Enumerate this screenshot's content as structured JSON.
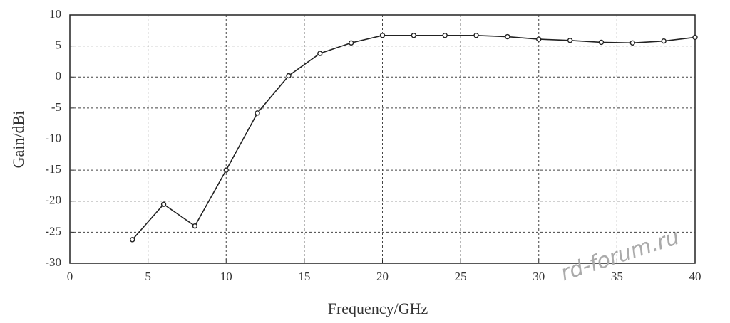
{
  "chart_data": {
    "type": "line",
    "xlabel": "Frequency/GHz",
    "ylabel": "Gain/dBi",
    "x": [
      4,
      6,
      8,
      10,
      12,
      14,
      16,
      18,
      20,
      22,
      24,
      26,
      28,
      30,
      32,
      34,
      36,
      38,
      40
    ],
    "series": [
      {
        "color": "#222222",
        "values": [
          -26.2,
          -20.5,
          -24,
          -15,
          -5.8,
          0.2,
          3.8,
          5.5,
          6.7,
          6.7,
          6.7,
          6.7,
          6.5,
          6.1,
          5.9,
          5.6,
          5.5,
          5.8,
          6.4
        ]
      }
    ],
    "xlim": [
      0,
      40
    ],
    "xticks": [
      0,
      5,
      10,
      15,
      20,
      25,
      30,
      35,
      40
    ],
    "ylim": [
      -30,
      10
    ],
    "yticks": [
      -30,
      -25,
      -20,
      -15,
      -10,
      -5,
      0,
      5,
      10
    ],
    "grid": true,
    "watermark": "rd-forum.ru"
  }
}
